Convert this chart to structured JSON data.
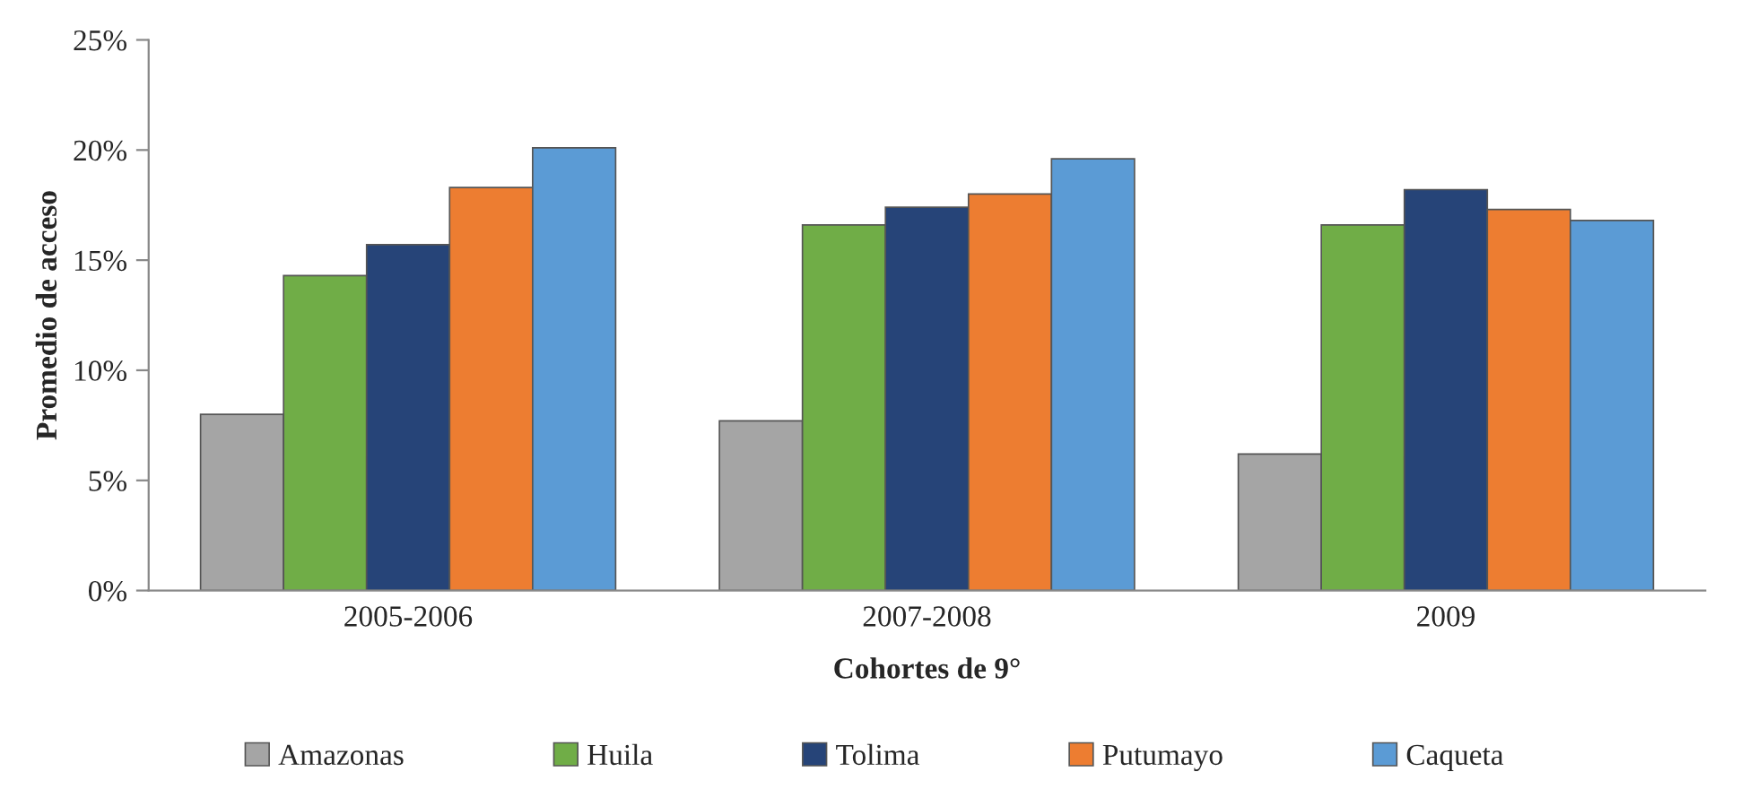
{
  "chart_data": {
    "type": "bar",
    "xlabel": "Cohortes de 9°",
    "ylabel": "Promedio de acceso",
    "categories": [
      "2005-2006",
      "2007-2008",
      "2009"
    ],
    "series": [
      {
        "name": "Amazonas",
        "color": "#a5a5a5",
        "values": [
          8.0,
          7.7,
          6.2
        ]
      },
      {
        "name": "Huila",
        "color": "#70ad47",
        "values": [
          14.3,
          16.6,
          16.6
        ]
      },
      {
        "name": "Tolima",
        "color": "#264478",
        "values": [
          15.7,
          17.4,
          18.2
        ]
      },
      {
        "name": "Putumayo",
        "color": "#ed7d31",
        "values": [
          18.3,
          18.0,
          17.3
        ]
      },
      {
        "name": "Caqueta",
        "color": "#5b9bd5",
        "values": [
          20.1,
          19.6,
          16.8
        ]
      }
    ],
    "ylim": [
      0,
      25
    ],
    "yticks": [
      {
        "value": 0,
        "label": "0%"
      },
      {
        "value": 5,
        "label": "5%"
      },
      {
        "value": 10,
        "label": "10%"
      },
      {
        "value": 15,
        "label": "15%"
      },
      {
        "value": 20,
        "label": "20%"
      },
      {
        "value": 25,
        "label": "25%"
      }
    ],
    "grid": false,
    "legend": "bottom"
  }
}
